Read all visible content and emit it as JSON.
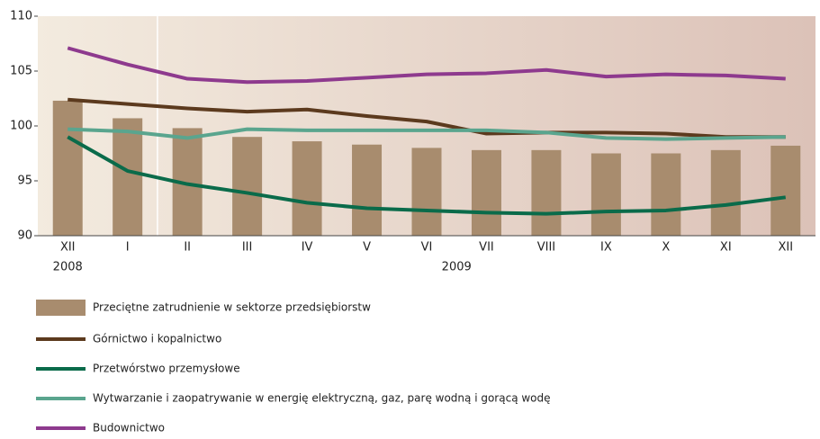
{
  "chart_data": {
    "type": "bar",
    "categories": [
      "XII",
      "I",
      "II",
      "III",
      "IV",
      "V",
      "VI",
      "VII",
      "VIII",
      "IX",
      "X",
      "XI",
      "XII"
    ],
    "x_groups": [
      {
        "label": "2008",
        "start": 0,
        "end": 0
      },
      {
        "label": "2009",
        "start": 1,
        "end": 12
      }
    ],
    "ylim": [
      90,
      110
    ],
    "yticks": [
      90,
      95,
      100,
      105,
      110
    ],
    "series": [
      {
        "name": "Przeciętne zatrudnienie w sektorze przedsiębiorstw",
        "type": "bar",
        "color": "#a88c6e",
        "values": [
          102.3,
          100.7,
          99.8,
          99.0,
          98.6,
          98.3,
          98.0,
          97.8,
          97.8,
          97.5,
          97.5,
          97.8,
          98.2
        ]
      },
      {
        "name": "Górnictwo i kopalnictwo",
        "type": "line",
        "color": "#5c3a1e",
        "values": [
          102.4,
          102.0,
          101.6,
          101.3,
          101.5,
          100.9,
          100.4,
          99.3,
          99.4,
          99.4,
          99.3,
          99.0,
          99.0
        ]
      },
      {
        "name": "Przetwórstwo przemysłowe",
        "type": "line",
        "color": "#0a6b4a",
        "values": [
          99.0,
          95.9,
          94.7,
          93.9,
          93.0,
          92.5,
          92.3,
          92.1,
          92.0,
          92.2,
          92.3,
          92.8,
          93.5
        ]
      },
      {
        "name": "Wytwarzanie i zaopatrywanie w energię elektryczną, gaz, parę wodną i gorącą wodę",
        "type": "line",
        "color": "#5aa58e",
        "values": [
          99.7,
          99.5,
          98.9,
          99.7,
          99.6,
          99.6,
          99.6,
          99.6,
          99.4,
          98.9,
          98.8,
          98.9,
          99.0
        ]
      },
      {
        "name": "Budownictwo",
        "type": "line",
        "color": "#8e3a8e",
        "values": [
          107.1,
          105.6,
          104.3,
          104.0,
          104.1,
          104.4,
          104.7,
          104.8,
          105.1,
          104.5,
          104.7,
          104.6,
          104.3
        ]
      }
    ]
  }
}
